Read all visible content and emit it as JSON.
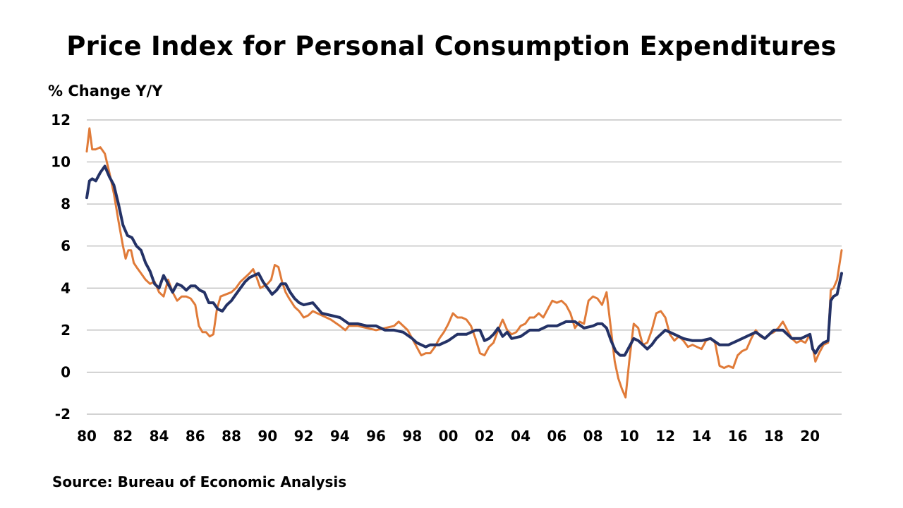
{
  "chart_data": {
    "type": "line",
    "title": "Price Index for Personal Consumption Expenditures",
    "ylabel": "% Change Y/Y",
    "xlabel": "",
    "source": "Source: Bureau of Economic Analysis",
    "ylim": [
      -2,
      12
    ],
    "yticks": [
      "12",
      "10",
      "8",
      "6",
      "4",
      "2",
      "0",
      "-2"
    ],
    "xlim": [
      1980.0,
      2021.75
    ],
    "xticks": [
      "80",
      "82",
      "84",
      "86",
      "88",
      "90",
      "92",
      "94",
      "96",
      "98",
      "00",
      "02",
      "04",
      "06",
      "08",
      "10",
      "12",
      "14",
      "16",
      "18",
      "20"
    ],
    "grid": "horizontal",
    "legend": "none",
    "series": [
      {
        "color": "#E07B39",
        "x": [
          1980.0,
          1980.15,
          1980.3,
          1980.5,
          1980.75,
          1981.0,
          1981.25,
          1981.5,
          1981.75,
          1982.0,
          1982.15,
          1982.3,
          1982.45,
          1982.6,
          1982.75,
          1983.0,
          1983.25,
          1983.5,
          1983.75,
          1984.0,
          1984.25,
          1984.5,
          1984.75,
          1985.0,
          1985.25,
          1985.5,
          1985.75,
          1986.0,
          1986.2,
          1986.4,
          1986.6,
          1986.8,
          1987.0,
          1987.2,
          1987.4,
          1987.7,
          1988.0,
          1988.25,
          1988.5,
          1988.75,
          1989.0,
          1989.2,
          1989.4,
          1989.6,
          1989.8,
          1990.0,
          1990.2,
          1990.4,
          1990.6,
          1990.8,
          1991.0,
          1991.2,
          1991.5,
          1991.75,
          1992.0,
          1992.25,
          1992.5,
          1992.75,
          1993.0,
          1993.5,
          1994.0,
          1994.3,
          1994.5,
          1995.0,
          1995.5,
          1996.0,
          1996.5,
          1997.0,
          1997.25,
          1997.5,
          1997.75,
          1998.0,
          1998.25,
          1998.5,
          1998.75,
          1999.0,
          1999.25,
          1999.5,
          1999.75,
          2000.0,
          2000.25,
          2000.5,
          2000.75,
          2001.0,
          2001.25,
          2001.5,
          2001.75,
          2002.0,
          2002.25,
          2002.5,
          2002.75,
          2003.0,
          2003.25,
          2003.5,
          2003.75,
          2004.0,
          2004.25,
          2004.5,
          2004.75,
          2005.0,
          2005.25,
          2005.5,
          2005.75,
          2006.0,
          2006.25,
          2006.5,
          2006.75,
          2007.0,
          2007.25,
          2007.5,
          2007.75,
          2008.0,
          2008.25,
          2008.5,
          2008.75,
          2009.0,
          2009.2,
          2009.4,
          2009.6,
          2009.8,
          2010.0,
          2010.25,
          2010.5,
          2010.75,
          2011.0,
          2011.25,
          2011.5,
          2011.75,
          2012.0,
          2012.25,
          2012.5,
          2012.75,
          2013.0,
          2013.25,
          2013.5,
          2013.75,
          2014.0,
          2014.25,
          2014.5,
          2014.75,
          2015.0,
          2015.25,
          2015.5,
          2015.75,
          2016.0,
          2016.25,
          2016.5,
          2016.75,
          2017.0,
          2017.25,
          2017.5,
          2017.75,
          2018.0,
          2018.25,
          2018.5,
          2018.75,
          2019.0,
          2019.25,
          2019.5,
          2019.75,
          2020.0,
          2020.15,
          2020.3,
          2020.5,
          2020.75,
          2021.0,
          2021.15,
          2021.3,
          2021.5,
          2021.75
        ],
        "y": [
          10.5,
          11.6,
          10.6,
          10.6,
          10.7,
          10.4,
          9.5,
          8.5,
          7.2,
          6.0,
          5.4,
          5.8,
          5.8,
          5.2,
          5.0,
          4.7,
          4.4,
          4.2,
          4.3,
          3.8,
          3.6,
          4.4,
          3.8,
          3.4,
          3.6,
          3.6,
          3.5,
          3.2,
          2.2,
          1.9,
          1.9,
          1.7,
          1.8,
          3.0,
          3.6,
          3.7,
          3.8,
          4.0,
          4.3,
          4.5,
          4.7,
          4.9,
          4.5,
          4.0,
          4.1,
          4.2,
          4.4,
          5.1,
          5.0,
          4.3,
          3.8,
          3.5,
          3.1,
          2.9,
          2.6,
          2.7,
          2.9,
          2.8,
          2.7,
          2.5,
          2.2,
          2.0,
          2.2,
          2.2,
          2.1,
          2.0,
          2.1,
          2.2,
          2.4,
          2.2,
          2.0,
          1.6,
          1.2,
          0.8,
          0.9,
          0.9,
          1.2,
          1.6,
          1.9,
          2.3,
          2.8,
          2.6,
          2.6,
          2.5,
          2.2,
          1.6,
          0.9,
          0.8,
          1.2,
          1.4,
          2.0,
          2.5,
          2.0,
          1.8,
          1.9,
          2.2,
          2.3,
          2.6,
          2.6,
          2.8,
          2.6,
          3.0,
          3.4,
          3.3,
          3.4,
          3.2,
          2.8,
          2.1,
          2.4,
          2.3,
          3.4,
          3.6,
          3.5,
          3.2,
          3.8,
          2.0,
          0.5,
          -0.3,
          -0.8,
          -1.2,
          0.5,
          2.3,
          2.1,
          1.3,
          1.4,
          2.0,
          2.8,
          2.9,
          2.6,
          1.8,
          1.5,
          1.7,
          1.5,
          1.2,
          1.3,
          1.2,
          1.1,
          1.5,
          1.6,
          1.4,
          0.3,
          0.2,
          0.3,
          0.2,
          0.8,
          1.0,
          1.1,
          1.6,
          2.0,
          1.7,
          1.6,
          1.8,
          1.9,
          2.1,
          2.4,
          2.0,
          1.6,
          1.4,
          1.5,
          1.4,
          1.8,
          1.2,
          0.5,
          0.9,
          1.3,
          1.4,
          3.9,
          4.0,
          4.4,
          5.8
        ]
      },
      {
        "color": "#243266",
        "x": [
          1980.0,
          1980.15,
          1980.3,
          1980.5,
          1980.75,
          1981.0,
          1981.25,
          1981.5,
          1981.75,
          1982.0,
          1982.25,
          1982.5,
          1982.75,
          1983.0,
          1983.25,
          1983.5,
          1983.75,
          1984.0,
          1984.25,
          1984.5,
          1984.75,
          1985.0,
          1985.25,
          1985.5,
          1985.75,
          1986.0,
          1986.25,
          1986.5,
          1986.75,
          1987.0,
          1987.25,
          1987.5,
          1987.75,
          1988.0,
          1988.25,
          1988.5,
          1988.75,
          1989.0,
          1989.25,
          1989.5,
          1989.75,
          1990.0,
          1990.25,
          1990.5,
          1990.75,
          1991.0,
          1991.25,
          1991.5,
          1991.75,
          1992.0,
          1992.5,
          1993.0,
          1993.5,
          1994.0,
          1994.5,
          1995.0,
          1995.5,
          1996.0,
          1996.5,
          1997.0,
          1997.5,
          1998.0,
          1998.25,
          1998.5,
          1998.75,
          1999.0,
          1999.5,
          2000.0,
          2000.5,
          2001.0,
          2001.5,
          2001.75,
          2002.0,
          2002.25,
          2002.5,
          2002.75,
          2003.0,
          2003.25,
          2003.5,
          2004.0,
          2004.5,
          2005.0,
          2005.5,
          2006.0,
          2006.5,
          2007.0,
          2007.5,
          2008.0,
          2008.25,
          2008.5,
          2008.75,
          2009.0,
          2009.25,
          2009.5,
          2009.75,
          2010.0,
          2010.25,
          2010.5,
          2010.75,
          2011.0,
          2011.25,
          2011.5,
          2011.75,
          2012.0,
          2012.5,
          2013.0,
          2013.5,
          2014.0,
          2014.5,
          2015.0,
          2015.5,
          2016.0,
          2016.5,
          2017.0,
          2017.5,
          2018.0,
          2018.5,
          2019.0,
          2019.5,
          2020.0,
          2020.15,
          2020.3,
          2020.5,
          2020.75,
          2021.0,
          2021.15,
          2021.3,
          2021.5,
          2021.75
        ],
        "y": [
          8.3,
          9.1,
          9.2,
          9.1,
          9.5,
          9.8,
          9.3,
          8.9,
          8.0,
          7.0,
          6.5,
          6.4,
          6.0,
          5.8,
          5.2,
          4.8,
          4.2,
          4.0,
          4.6,
          4.2,
          3.8,
          4.2,
          4.1,
          3.9,
          4.1,
          4.1,
          3.9,
          3.8,
          3.3,
          3.3,
          3.0,
          2.9,
          3.2,
          3.4,
          3.7,
          4.0,
          4.3,
          4.5,
          4.6,
          4.7,
          4.3,
          4.0,
          3.7,
          3.9,
          4.2,
          4.2,
          3.8,
          3.5,
          3.3,
          3.2,
          3.3,
          2.8,
          2.7,
          2.6,
          2.3,
          2.3,
          2.2,
          2.2,
          2.0,
          2.0,
          1.9,
          1.6,
          1.4,
          1.3,
          1.2,
          1.3,
          1.3,
          1.5,
          1.8,
          1.8,
          2.0,
          2.0,
          1.5,
          1.6,
          1.8,
          2.1,
          1.7,
          1.9,
          1.6,
          1.7,
          2.0,
          2.0,
          2.2,
          2.2,
          2.4,
          2.4,
          2.1,
          2.2,
          2.3,
          2.3,
          2.1,
          1.5,
          1.0,
          0.8,
          0.8,
          1.2,
          1.6,
          1.5,
          1.3,
          1.1,
          1.3,
          1.6,
          1.8,
          2.0,
          1.8,
          1.6,
          1.5,
          1.5,
          1.6,
          1.3,
          1.3,
          1.5,
          1.7,
          1.9,
          1.6,
          2.0,
          2.0,
          1.6,
          1.6,
          1.8,
          1.1,
          0.9,
          1.2,
          1.4,
          1.5,
          3.4,
          3.6,
          3.7,
          4.7
        ]
      }
    ]
  }
}
